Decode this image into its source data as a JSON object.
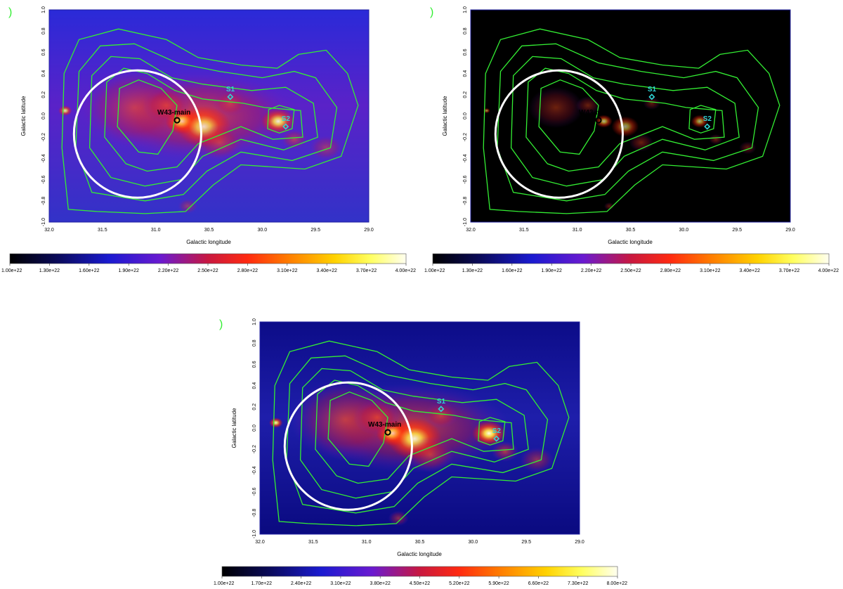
{
  "figure": {
    "panels": [
      {
        "id": "left",
        "colorbar_ticks": [
          "1.00e+22",
          "1.30e+22",
          "1.60e+22",
          "1.90e+22",
          "2.20e+22",
          "2.50e+22",
          "2.80e+22",
          "3.10e+22",
          "3.40e+22",
          "3.70e+22",
          "4.00e+22"
        ],
        "colormap": "dark-background",
        "glow_scale": 1.0
      },
      {
        "id": "right",
        "colorbar_ticks": [
          "1.00e+22",
          "1.30e+22",
          "1.60e+22",
          "1.90e+22",
          "2.20e+22",
          "2.50e+22",
          "2.80e+22",
          "3.10e+22",
          "3.40e+22",
          "3.70e+22",
          "4.00e+22"
        ],
        "colormap": "black-background",
        "glow_scale": 0.6
      },
      {
        "id": "bottom",
        "colorbar_ticks": [
          "1.00e+22",
          "1.70e+22",
          "2.40e+22",
          "3.10e+22",
          "3.80e+22",
          "4.50e+22",
          "5.20e+22",
          "5.90e+22",
          "6.60e+22",
          "7.30e+22",
          "8.00e+22"
        ],
        "colormap": "dark-background",
        "glow_scale": 1.2
      }
    ]
  },
  "chart_data": {
    "type": "heatmap",
    "xlabel": "Galactic longitude",
    "ylabel": "Galactic latitude",
    "xlim": [
      32.0,
      29.0
    ],
    "ylim": [
      -1.0,
      1.0
    ],
    "x_ticks": [
      "32.0",
      "31.5",
      "31.0",
      "30.5",
      "30.0",
      "29.5",
      "29.0"
    ],
    "y_ticks": [
      "1.0",
      "0.8",
      "0.6",
      "0.4",
      "0.2",
      "0.0",
      "-0.2",
      "-0.4",
      "-0.6",
      "-0.8",
      "-1.0"
    ],
    "colorscale": [
      "#000000",
      "#0a0a5a",
      "#1a1ad0",
      "#6a1ad0",
      "#c81840",
      "#ff2a10",
      "#ff7a00",
      "#ffd200",
      "#ffff60",
      "#fffff0"
    ],
    "markers": [
      {
        "label": "W43-main",
        "l": 30.8,
        "b": -0.04,
        "shape": "circle",
        "color": "#000000"
      },
      {
        "label": "S1",
        "l": 30.3,
        "b": 0.18,
        "shape": "diamond",
        "color": "#2fd6d6"
      },
      {
        "label": "S2",
        "l": 29.78,
        "b": -0.1,
        "shape": "diamond",
        "color": "#2fd6d6"
      }
    ],
    "region": {
      "l_center": 31.17,
      "b_center": -0.17,
      "radius_deg": 0.6,
      "color": "#ffffff"
    },
    "contours": {
      "color": "#33ee33",
      "levels": [
        [
          [
            31.82,
            -0.88
          ],
          [
            31.88,
            -0.3
          ],
          [
            31.86,
            0.4
          ],
          [
            31.72,
            0.72
          ],
          [
            31.35,
            0.82
          ],
          [
            30.9,
            0.72
          ],
          [
            30.6,
            0.55
          ],
          [
            30.2,
            0.48
          ],
          [
            29.86,
            0.45
          ],
          [
            29.66,
            0.58
          ],
          [
            29.4,
            0.62
          ],
          [
            29.2,
            0.4
          ],
          [
            29.1,
            0.1
          ],
          [
            29.26,
            -0.38
          ],
          [
            29.6,
            -0.5
          ],
          [
            30.2,
            -0.46
          ],
          [
            30.46,
            -0.65
          ],
          [
            30.72,
            -0.9
          ],
          [
            31.1,
            -0.92
          ],
          [
            31.55,
            -0.9
          ]
        ],
        [
          [
            31.6,
            -0.72
          ],
          [
            31.75,
            -0.3
          ],
          [
            31.72,
            0.42
          ],
          [
            31.52,
            0.66
          ],
          [
            31.2,
            0.68
          ],
          [
            30.8,
            0.5
          ],
          [
            30.4,
            0.42
          ],
          [
            30.0,
            0.36
          ],
          [
            29.7,
            0.42
          ],
          [
            29.5,
            0.36
          ],
          [
            29.3,
            0.08
          ],
          [
            29.36,
            -0.3
          ],
          [
            29.72,
            -0.42
          ],
          [
            30.2,
            -0.34
          ],
          [
            30.52,
            -0.52
          ],
          [
            30.74,
            -0.74
          ],
          [
            31.1,
            -0.8
          ]
        ],
        [
          [
            31.42,
            -0.58
          ],
          [
            31.62,
            -0.3
          ],
          [
            31.6,
            0.38
          ],
          [
            31.42,
            0.56
          ],
          [
            31.15,
            0.54
          ],
          [
            30.85,
            0.36
          ],
          [
            30.56,
            0.3
          ],
          [
            30.1,
            0.24
          ],
          [
            29.78,
            0.27
          ],
          [
            29.52,
            0.12
          ],
          [
            29.48,
            -0.2
          ],
          [
            29.8,
            -0.32
          ],
          [
            30.2,
            -0.22
          ],
          [
            30.56,
            -0.38
          ],
          [
            30.76,
            -0.6
          ],
          [
            31.1,
            -0.66
          ]
        ],
        [
          [
            31.28,
            -0.45
          ],
          [
            31.48,
            -0.2
          ],
          [
            31.46,
            0.32
          ],
          [
            31.3,
            0.45
          ],
          [
            31.08,
            0.4
          ],
          [
            30.82,
            0.24
          ],
          [
            30.56,
            0.16
          ],
          [
            30.18,
            0.12
          ],
          [
            29.98,
            0.08
          ],
          [
            29.64,
            0.05
          ],
          [
            29.62,
            -0.2
          ],
          [
            29.9,
            -0.22
          ],
          [
            30.2,
            -0.1
          ],
          [
            30.6,
            -0.26
          ],
          [
            30.8,
            -0.48
          ],
          [
            31.08,
            -0.52
          ]
        ],
        [
          [
            31.16,
            -0.34
          ],
          [
            31.36,
            -0.1
          ],
          [
            31.34,
            0.26
          ],
          [
            31.16,
            0.34
          ],
          [
            30.95,
            0.26
          ],
          [
            30.8,
            0.1
          ],
          [
            30.84,
            -0.14
          ],
          [
            30.98,
            -0.36
          ]
        ],
        [
          [
            29.95,
            -0.12
          ],
          [
            29.94,
            0.06
          ],
          [
            29.84,
            0.1
          ],
          [
            29.7,
            0.06
          ],
          [
            29.72,
            -0.12
          ],
          [
            29.84,
            -0.16
          ]
        ]
      ]
    },
    "emission_sources": [
      {
        "l": 31.2,
        "b": 0.08,
        "amp": 0.42,
        "sig": 0.32
      },
      {
        "l": 30.75,
        "b": -0.05,
        "amp": 0.72,
        "sig": 0.1
      },
      {
        "l": 30.55,
        "b": -0.1,
        "amp": 0.55,
        "sig": 0.16
      },
      {
        "l": 30.3,
        "b": 0.12,
        "amp": 0.32,
        "sig": 0.1
      },
      {
        "l": 29.85,
        "b": -0.05,
        "amp": 0.65,
        "sig": 0.1
      },
      {
        "l": 29.7,
        "b": -0.22,
        "amp": 0.42,
        "sig": 0.08
      },
      {
        "l": 30.9,
        "b": 0.1,
        "amp": 0.4,
        "sig": 0.14
      },
      {
        "l": 31.85,
        "b": 0.05,
        "amp": 0.55,
        "sig": 0.04
      },
      {
        "l": 30.4,
        "b": -0.25,
        "amp": 0.4,
        "sig": 0.14
      },
      {
        "l": 29.4,
        "b": -0.3,
        "amp": 0.3,
        "sig": 0.1
      },
      {
        "l": 30.7,
        "b": -0.85,
        "amp": 0.3,
        "sig": 0.06
      }
    ]
  }
}
